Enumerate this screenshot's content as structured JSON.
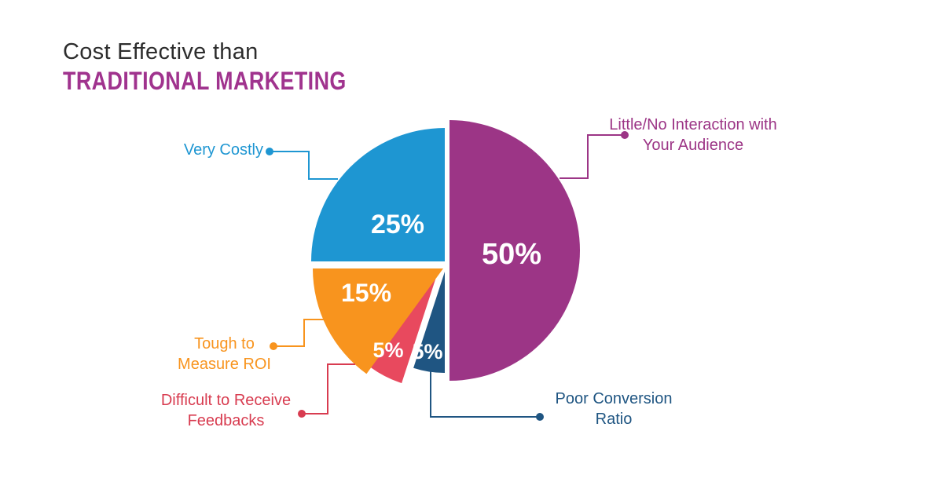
{
  "background": "#ffffff",
  "title": {
    "line1": "Cost Effective than",
    "line2": "TRADITIONAL MARKETING",
    "line1_color": "#2D2D2D",
    "line2_color": "#A0338E"
  },
  "chart_data": {
    "type": "pie",
    "title": "Cost Effective than Traditional Marketing",
    "legend_position": "none",
    "label_style": "external callouts with elbow leader lines and dots",
    "slices": [
      {
        "id": "little-no-interaction",
        "label": "Little/No Interaction with Your Audience",
        "value": 50,
        "pct_label": "50%",
        "color": "#9C3586"
      },
      {
        "id": "poor-conversion-ratio",
        "label": "Poor Conversion Ratio",
        "value": 5,
        "pct_label": "5%",
        "color": "#1F5582"
      },
      {
        "id": "difficult-feedbacks",
        "label": "Difficult to Receive Feedbacks",
        "value": 5,
        "pct_label": "5%",
        "color": "#E8495E"
      },
      {
        "id": "tough-measure-roi",
        "label": "Tough to Measure ROI",
        "value": 15,
        "pct_label": "15%",
        "color": "#F8941E"
      },
      {
        "id": "very-costly",
        "label": "Very Costly",
        "value": 25,
        "pct_label": "25%",
        "color": "#1E96D2"
      }
    ],
    "percent_label_color": "#FFFFFF"
  },
  "callouts": [
    {
      "id": "little-no-interaction",
      "lines": [
        "Little/No Interaction with",
        "Your Audience"
      ],
      "color": "#9C3586"
    },
    {
      "id": "poor-conversion-ratio",
      "lines": [
        "Poor Conversion",
        "Ratio"
      ],
      "color": "#1F5582"
    },
    {
      "id": "difficult-feedbacks",
      "lines": [
        "Difficult to Receive",
        "Feedbacks"
      ],
      "color": "#D83C50"
    },
    {
      "id": "tough-measure-roi",
      "lines": [
        "Tough to",
        "Measure ROI"
      ],
      "color": "#F8941E"
    },
    {
      "id": "very-costly",
      "lines": [
        "Very Costly"
      ],
      "color": "#1E96D2"
    }
  ]
}
